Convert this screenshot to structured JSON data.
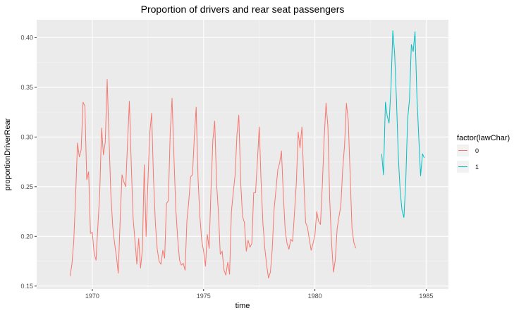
{
  "chart_data": {
    "type": "line",
    "title": "Proportion of drivers and rear seat passengers",
    "xlabel": "time",
    "ylabel": "proportionDriverRear",
    "xlim": [
      1967.5,
      1986.0
    ],
    "ylim": [
      0.147,
      0.418
    ],
    "x_ticks": [
      1970,
      1975,
      1980,
      1985
    ],
    "x_tick_labels": [
      "1970",
      "1975",
      "1980",
      "1985"
    ],
    "y_ticks": [
      0.15,
      0.2,
      0.25,
      0.3,
      0.35,
      0.4
    ],
    "y_tick_labels": [
      "0.15",
      "0.20",
      "0.25",
      "0.30",
      "0.35",
      "0.40"
    ],
    "grid": true,
    "legend": {
      "title": "factor(lawChar)",
      "position": "right",
      "entries": [
        "0",
        "1"
      ]
    },
    "series": [
      {
        "name": "0",
        "color": "#F8766D",
        "x_start": 1969.0,
        "step": 0.0833333,
        "values": [
          0.16,
          0.172,
          0.195,
          0.24,
          0.294,
          0.28,
          0.287,
          0.335,
          0.331,
          0.257,
          0.265,
          0.203,
          0.204,
          0.183,
          0.176,
          0.21,
          0.243,
          0.309,
          0.282,
          0.295,
          0.358,
          0.299,
          0.243,
          0.21,
          0.193,
          0.18,
          0.163,
          0.216,
          0.262,
          0.255,
          0.25,
          0.294,
          0.336,
          0.272,
          0.218,
          0.196,
          0.172,
          0.198,
          0.168,
          0.186,
          0.272,
          0.2,
          0.255,
          0.305,
          0.324,
          0.258,
          0.213,
          0.187,
          0.175,
          0.172,
          0.186,
          0.178,
          0.233,
          0.236,
          0.304,
          0.339,
          0.28,
          0.228,
          0.199,
          0.176,
          0.171,
          0.173,
          0.166,
          0.216,
          0.235,
          0.26,
          0.262,
          0.3,
          0.33,
          0.258,
          0.22,
          0.196,
          0.185,
          0.17,
          0.202,
          0.188,
          0.248,
          0.297,
          0.316,
          0.253,
          0.224,
          0.182,
          0.185,
          0.166,
          0.161,
          0.174,
          0.162,
          0.225,
          0.244,
          0.262,
          0.303,
          0.322,
          0.254,
          0.22,
          0.214,
          0.185,
          0.196,
          0.189,
          0.193,
          0.244,
          0.244,
          0.275,
          0.31,
          0.255,
          0.213,
          0.188,
          0.171,
          0.158,
          0.164,
          0.187,
          0.227,
          0.247,
          0.267,
          0.274,
          0.286,
          0.241,
          0.206,
          0.193,
          0.187,
          0.197,
          0.195,
          0.224,
          0.254,
          0.305,
          0.289,
          0.31,
          0.258,
          0.214,
          0.209,
          0.197,
          0.186,
          0.193,
          0.201,
          0.225,
          0.215,
          0.212,
          0.251,
          0.298,
          0.334,
          0.311,
          0.237,
          0.193,
          0.164,
          0.176,
          0.208,
          0.22,
          0.231,
          0.268,
          0.292,
          0.334,
          0.317,
          0.262,
          0.208,
          0.194,
          0.188
        ]
      },
      {
        "name": "1",
        "color": "#00BFC4",
        "x_start": 1983.0,
        "step": 0.0833333,
        "values": [
          0.283,
          0.262,
          0.335,
          0.321,
          0.314,
          0.35,
          0.407,
          0.384,
          0.337,
          0.279,
          0.245,
          0.226,
          0.219,
          0.256,
          0.318,
          0.338,
          0.393,
          0.386,
          0.406,
          0.341,
          0.3,
          0.261,
          0.283,
          0.279
        ]
      }
    ]
  }
}
